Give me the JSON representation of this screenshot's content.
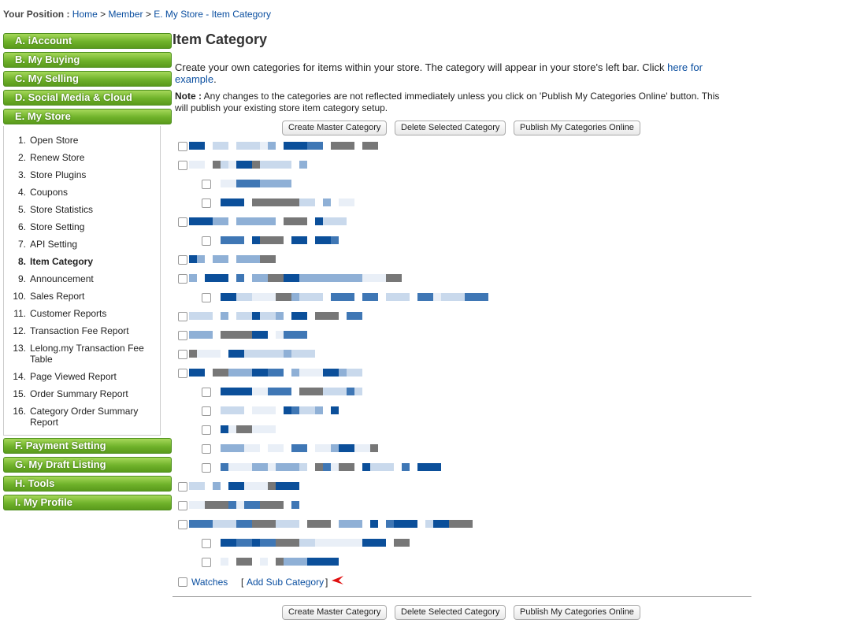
{
  "breadcrumb": {
    "label": "Your Position :",
    "separator": ">",
    "items": [
      "Home",
      "Member",
      "E. My Store - Item Category"
    ]
  },
  "sidebar": {
    "sections_top": [
      "A. iAccount",
      "B. My Buying",
      "C. My Selling",
      "D. Social Media & Cloud",
      "E. My Store"
    ],
    "store_menu": [
      {
        "number": "1.",
        "label": "Open Store"
      },
      {
        "number": "2.",
        "label": "Renew Store"
      },
      {
        "number": "3.",
        "label": "Store Plugins"
      },
      {
        "number": "4.",
        "label": "Coupons"
      },
      {
        "number": "5.",
        "label": "Store Statistics"
      },
      {
        "number": "6.",
        "label": "Store Setting"
      },
      {
        "number": "7.",
        "label": "API Setting"
      },
      {
        "number": "8.",
        "label": "Item Category"
      },
      {
        "number": "9.",
        "label": "Announcement"
      },
      {
        "number": "10.",
        "label": "Sales Report"
      },
      {
        "number": "11.",
        "label": "Customer Reports"
      },
      {
        "number": "12.",
        "label": "Transaction Fee Report"
      },
      {
        "number": "13.",
        "label": "Lelong.my Transaction Fee Table"
      },
      {
        "number": "14.",
        "label": "Page Viewed Report"
      },
      {
        "number": "15.",
        "label": "Order Summary Report"
      },
      {
        "number": "16.",
        "label": "Category Order Summary Report"
      }
    ],
    "sections_bottom": [
      "F. Payment Setting",
      "G. My Draft Listing",
      "H. Tools",
      "I. My Profile"
    ]
  },
  "main": {
    "title": "Item Category",
    "intro": {
      "text": "Create your own categories for items within your store. The category will appear in your store's left bar. Click",
      "link": "here for example",
      "end": "."
    },
    "note": {
      "label": "Note :",
      "text": "Any changes to the categories are not reflected immediately unless you click on 'Publish My Categories Online' button. This will publish your existing store item category setup."
    },
    "buttons": [
      "Create Master Category",
      "Delete Selected Category",
      "Publish My Categories Online"
    ],
    "last_category": "Watches",
    "add_sub_category": {
      "open": "[",
      "label": "Add Sub Category",
      "close": "]"
    }
  }
}
